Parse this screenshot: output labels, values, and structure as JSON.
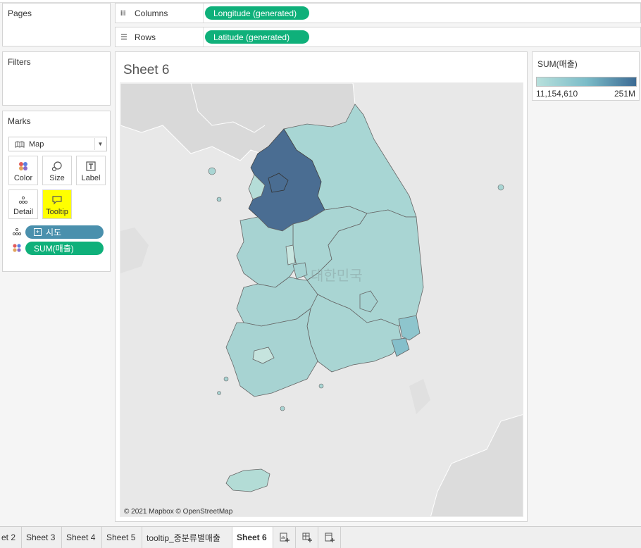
{
  "pages": {
    "title": "Pages"
  },
  "filters": {
    "title": "Filters"
  },
  "marks": {
    "title": "Marks",
    "mark_type": "Map",
    "buttons": {
      "color": "Color",
      "size": "Size",
      "label": "Label",
      "detail": "Detail",
      "tooltip": "Tooltip"
    },
    "fields": [
      {
        "name": "시도",
        "color": "#4a90ad",
        "role": "detail"
      },
      {
        "name": "SUM(매출)",
        "color": "#0fb07a",
        "role": "color"
      }
    ]
  },
  "columns": {
    "label": "Columns",
    "pill": "Longitude (generated)",
    "pill_color": "#0fb07a"
  },
  "rows": {
    "label": "Rows",
    "pill": "Latitude (generated)",
    "pill_color": "#0fb07a"
  },
  "sheet": {
    "title": "Sheet 6",
    "map_label": "대한민국",
    "attribution": "© 2021 Mapbox © OpenStreetMap"
  },
  "legend": {
    "title": "SUM(매출)",
    "min": "11,154,610",
    "max": "251M",
    "colors": {
      "low": "#b8e0dc",
      "high": "#3d6b94"
    }
  },
  "tabs": [
    {
      "label": "et 2",
      "active": false
    },
    {
      "label": "Sheet 3",
      "active": false
    },
    {
      "label": "Sheet 4",
      "active": false
    },
    {
      "label": "Sheet 5",
      "active": false
    },
    {
      "label": "tooltip_중분류별매출",
      "active": false
    },
    {
      "label": "Sheet 6",
      "active": true
    }
  ],
  "tab_icons": [
    "new-worksheet-icon",
    "new-dashboard-icon",
    "new-story-icon"
  ]
}
